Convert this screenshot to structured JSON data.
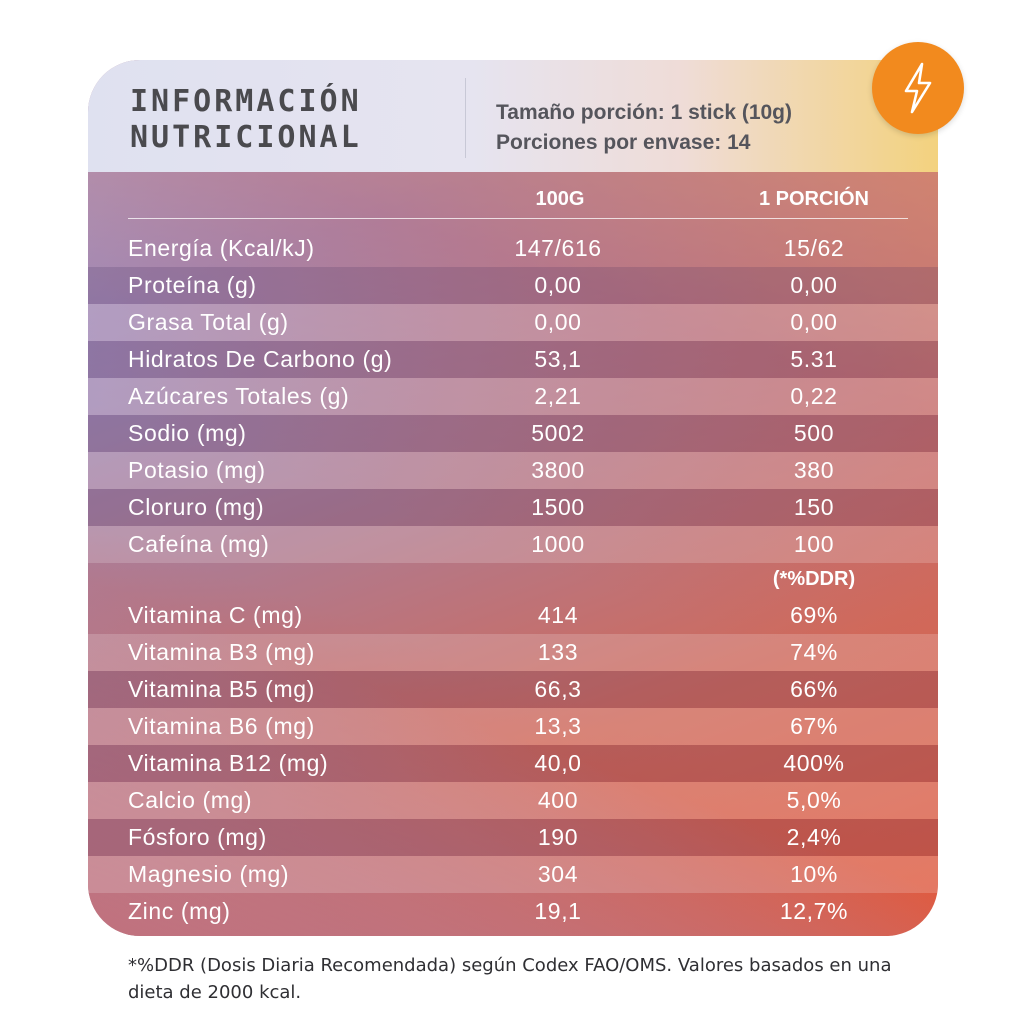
{
  "header": {
    "title_line1": "INFORMACIÓN",
    "title_line2": "NUTRICIONAL",
    "portion_size": "Tamaño porción: 1 stick (10g)",
    "portions_per_pack": "Porciones por envase: 14",
    "badge_icon": "lightning-bolt-icon"
  },
  "columns": {
    "col1": "100G",
    "col2": "1 PORCIÓN"
  },
  "rows_main": [
    {
      "name": "Energía (Kcal/kJ)",
      "v100": "147/616",
      "vportion": "15/62"
    },
    {
      "name": "Proteína (g)",
      "v100": "0,00",
      "vportion": "0,00"
    },
    {
      "name": "Grasa Total (g)",
      "v100": "0,00",
      "vportion": "0,00"
    },
    {
      "name": "Hidratos De Carbono (g)",
      "v100": "53,1",
      "vportion": "5.31"
    },
    {
      "name": "Azúcares Totales (g)",
      "v100": "2,21",
      "vportion": "0,22"
    },
    {
      "name": "Sodio (mg)",
      "v100": "5002",
      "vportion": "500"
    },
    {
      "name": "Potasio (mg)",
      "v100": "3800",
      "vportion": "380"
    },
    {
      "name": "Cloruro (mg)",
      "v100": "1500",
      "vportion": "150"
    },
    {
      "name": "Cafeína (mg)",
      "v100": "1000",
      "vportion": "100"
    }
  ],
  "ddr_header": "(*%DDR)",
  "rows_vitamins": [
    {
      "name": "Vitamina C (mg)",
      "v100": "414",
      "vportion": "69%"
    },
    {
      "name": "Vitamina B3 (mg)",
      "v100": "133",
      "vportion": "74%"
    },
    {
      "name": "Vitamina B5 (mg)",
      "v100": "66,3",
      "vportion": "66%"
    },
    {
      "name": "Vitamina B6 (mg)",
      "v100": "13,3",
      "vportion": "67%"
    },
    {
      "name": "Vitamina B12 (mg)",
      "v100": "40,0",
      "vportion": "400%"
    },
    {
      "name": "Calcio (mg)",
      "v100": "400",
      "vportion": "5,0%"
    },
    {
      "name": "Fósforo (mg)",
      "v100": "190",
      "vportion": "2,4%"
    },
    {
      "name": "Magnesio (mg)",
      "v100": "304",
      "vportion": "10%"
    },
    {
      "name": "Zinc (mg)",
      "v100": "19,1",
      "vportion": "12,7%"
    }
  ],
  "footnote": "*%DDR (Dosis Diaria Recomendada) según Codex FAO/OMS. Valores basados en una dieta de 2000 kcal.",
  "colors": {
    "badge": "#f28a1e",
    "title": "#4a4a4e",
    "text_light": "#ffffff"
  }
}
